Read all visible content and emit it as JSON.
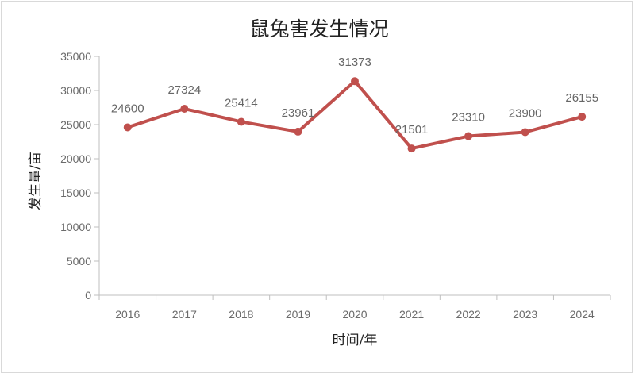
{
  "chart_data": {
    "type": "line",
    "title": "鼠兔害发生情况",
    "xlabel": "时间/年",
    "ylabel": "发生量/亩",
    "categories": [
      "2016",
      "2017",
      "2018",
      "2019",
      "2020",
      "2021",
      "2022",
      "2023",
      "2024"
    ],
    "series": [
      {
        "values": [
          24600,
          27324,
          25414,
          23961,
          31373,
          21501,
          23310,
          23900,
          26155
        ],
        "color": "#c0504d",
        "marker": "circle"
      }
    ],
    "ylim": [
      0,
      35000
    ],
    "yticks": [
      0,
      5000,
      10000,
      15000,
      20000,
      25000,
      30000,
      35000
    ],
    "grid": false,
    "legend": "none",
    "data_labels": true
  }
}
